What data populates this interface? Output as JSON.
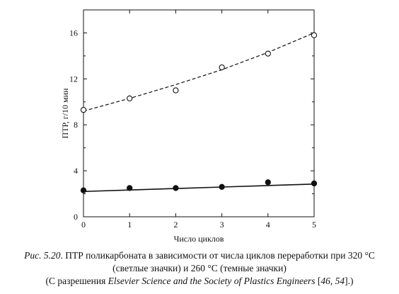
{
  "chart_data": {
    "type": "scatter",
    "xlabel": "Число циклов",
    "ylabel": "ПТР, г/10 мин",
    "xlim": [
      0,
      5
    ],
    "ylim": [
      0,
      18
    ],
    "x_ticks": [
      "0",
      "1",
      "2",
      "3",
      "4",
      "5"
    ],
    "y_ticks": [
      "0",
      "4",
      "8",
      "12",
      "16"
    ],
    "grid": false,
    "series": [
      {
        "marker": "open-circle",
        "line": "dashed",
        "x": [
          0,
          1,
          2,
          3,
          4,
          5
        ],
        "values": [
          9.3,
          10.3,
          11.0,
          13.0,
          14.2,
          15.8
        ],
        "fit": [
          9.2,
          10.3,
          11.5,
          12.8,
          14.3,
          16.0
        ]
      },
      {
        "marker": "filled-circle",
        "line": "solid",
        "x": [
          0,
          1,
          2,
          3,
          4,
          5
        ],
        "values": [
          2.3,
          2.5,
          2.5,
          2.6,
          3.0,
          2.9
        ],
        "fit": [
          2.2,
          2.33,
          2.46,
          2.59,
          2.72,
          2.85
        ]
      }
    ]
  },
  "caption": {
    "line1_label": "Рис. 5.20",
    "line1_text": ". ПТР поликарбоната в зависимости от числа циклов переработки при 320 °С",
    "line2": "(светлые значки) и 260 °С (темные значки)",
    "line3_pre": "(С разрешения ",
    "line3_source": "Elsevier Science and the Society of Plastics Engineers",
    "line3_refs_open": " [",
    "line3_refs": "46, 54",
    "line3_post": "].)"
  }
}
